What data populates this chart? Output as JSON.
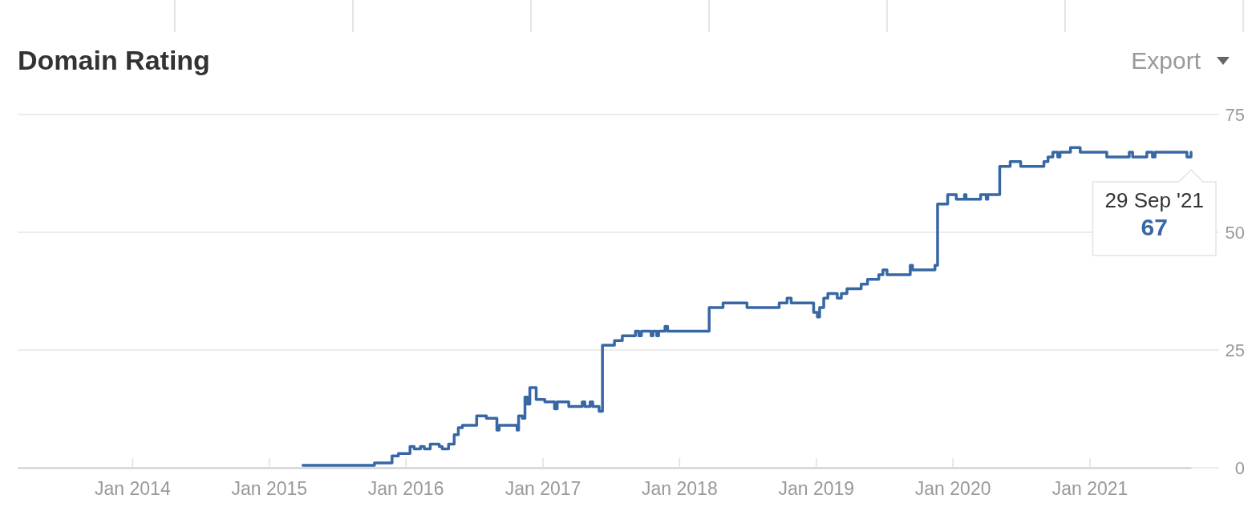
{
  "chart_data": {
    "type": "step",
    "title": "Domain Rating",
    "x": [
      "2015-04-02",
      "2015-10-10",
      "2015-11-26",
      "2015-12-13",
      "2016-01-13",
      "2016-01-24",
      "2016-02-10",
      "2016-02-20",
      "2016-03-07",
      "2016-03-31",
      "2016-04-08",
      "2016-04-25",
      "2016-05-10",
      "2016-05-21",
      "2016-06-01",
      "2016-07-09",
      "2016-08-04",
      "2016-09-01",
      "2016-09-07",
      "2016-10-25",
      "2016-10-29",
      "2016-11-08",
      "2016-11-15",
      "2016-11-21",
      "2016-11-28",
      "2016-12-15",
      "2017-01-07",
      "2017-02-02",
      "2017-02-09",
      "2017-03-12",
      "2017-04-17",
      "2017-04-24",
      "2017-05-08",
      "2017-05-15",
      "2017-06-01",
      "2017-06-10",
      "2017-07-12",
      "2017-08-02",
      "2017-09-06",
      "2017-09-15",
      "2017-09-22",
      "2017-10-18",
      "2017-10-23",
      "2017-11-02",
      "2017-11-07",
      "2017-11-24",
      "2017-12-01",
      "2018-03-22",
      "2018-04-28",
      "2018-07-01",
      "2018-09-25",
      "2018-10-16",
      "2018-10-27",
      "2018-12-26",
      "2019-01-05",
      "2019-01-11",
      "2019-01-22",
      "2019-02-02",
      "2019-02-27",
      "2019-03-10",
      "2019-03-25",
      "2019-05-02",
      "2019-05-19",
      "2019-06-18",
      "2019-06-29",
      "2019-07-10",
      "2019-09-10",
      "2019-09-16",
      "2019-11-15",
      "2019-11-22",
      "2019-12-19",
      "2020-01-11",
      "2020-02-02",
      "2020-02-06",
      "2020-03-16",
      "2020-03-31",
      "2020-04-04",
      "2020-05-06",
      "2020-06-03",
      "2020-07-01",
      "2020-09-01",
      "2020-09-12",
      "2020-09-25",
      "2020-10-08",
      "2020-10-14",
      "2020-11-11",
      "2020-12-07",
      "2021-02-16",
      "2021-04-17",
      "2021-04-26",
      "2021-06-03",
      "2021-06-18",
      "2021-06-25",
      "2021-09-18",
      "2021-09-29"
    ],
    "values": [
      0.5,
      1,
      2.5,
      3,
      4.5,
      4,
      4.5,
      4,
      5,
      4.5,
      4,
      5,
      7,
      8.5,
      9,
      11,
      10.5,
      8,
      9,
      8,
      11,
      10.5,
      15,
      13.5,
      17,
      14.5,
      14,
      12.5,
      14,
      13,
      14,
      13,
      14,
      13,
      12,
      26,
      27,
      28,
      29,
      28,
      29,
      28,
      29,
      28,
      29,
      30,
      29,
      34,
      35,
      34,
      35,
      36,
      35,
      33,
      32,
      34,
      36,
      37,
      36,
      37,
      38,
      39,
      40,
      41,
      42,
      41,
      43,
      42,
      43,
      56,
      58,
      57,
      58,
      57,
      58,
      57,
      58,
      64,
      65,
      64,
      65,
      66,
      67,
      66,
      67,
      68,
      67,
      66,
      67,
      66,
      67,
      66,
      67,
      66,
      67
    ],
    "color": "#3768a4",
    "xlim": [
      "2013-03-01",
      "2021-09-29"
    ],
    "xticks": [
      {
        "value": "2014-01",
        "label": "Jan 2014"
      },
      {
        "value": "2015-01",
        "label": "Jan 2015"
      },
      {
        "value": "2016-01",
        "label": "Jan 2016"
      },
      {
        "value": "2017-01",
        "label": "Jan 2017"
      },
      {
        "value": "2018-01",
        "label": "Jan 2018"
      },
      {
        "value": "2019-01",
        "label": "Jan 2019"
      },
      {
        "value": "2020-01",
        "label": "Jan 2020"
      },
      {
        "value": "2021-01",
        "label": "Jan 2021"
      }
    ],
    "ylim": [
      0,
      75
    ],
    "yticks": [
      0,
      25,
      50,
      75
    ],
    "grid": "y",
    "annotations": [
      "Export",
      {
        "text": "29 Sep '21",
        "x": "2021-09-29",
        "y": 67
      },
      {
        "text": "67",
        "x": "2021-09-29",
        "y": 67
      }
    ]
  }
}
